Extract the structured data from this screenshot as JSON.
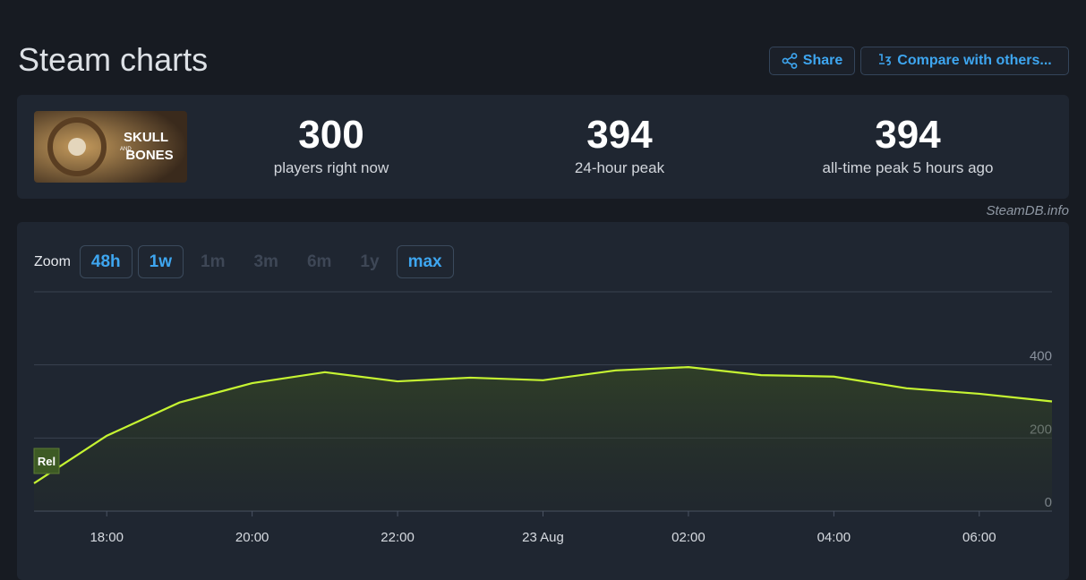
{
  "header": {
    "title": "Steam charts",
    "share": "Share",
    "compare": "Compare with others..."
  },
  "game": {
    "image_text": [
      "SKULL",
      "AND",
      "BONES"
    ]
  },
  "stats": [
    {
      "value": 300,
      "label": "players right now"
    },
    {
      "value": 394,
      "label": "24-hour peak"
    },
    {
      "value": 394,
      "label": "all-time peak 5 hours ago"
    }
  ],
  "credit": "SteamDB.info",
  "zoom": {
    "label": "Zoom",
    "options": [
      {
        "label": "48h",
        "enabled": true
      },
      {
        "label": "1w",
        "enabled": true
      },
      {
        "label": "1m",
        "enabled": false
      },
      {
        "label": "3m",
        "enabled": false
      },
      {
        "label": "6m",
        "enabled": false
      },
      {
        "label": "1y",
        "enabled": false
      },
      {
        "label": "max",
        "enabled": true
      }
    ]
  },
  "chart_data": {
    "type": "line",
    "categories": [
      null,
      "18:00",
      null,
      "20:00",
      null,
      "22:00",
      null,
      "23 Aug",
      null,
      "02:00",
      null,
      "04:00",
      null,
      "06:00",
      null
    ],
    "values": [
      76,
      206,
      297,
      350,
      380,
      355,
      365,
      358,
      385,
      394,
      372,
      368,
      336,
      321,
      300
    ],
    "color": "#c6f432",
    "ylim": [
      0,
      600
    ],
    "yticks": [
      0,
      200,
      400
    ],
    "grid": true,
    "annotation": "Rel"
  }
}
